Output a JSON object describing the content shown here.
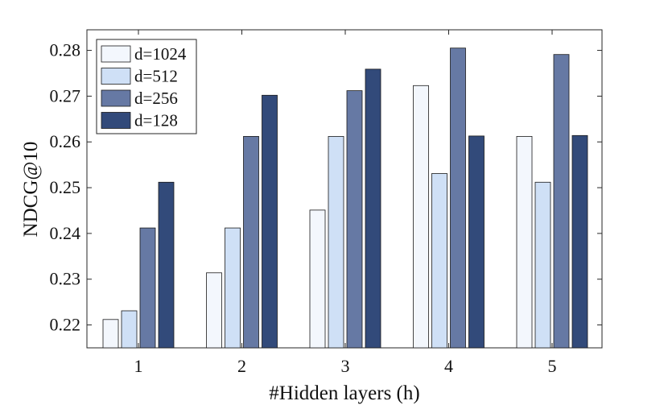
{
  "chart_data": {
    "type": "bar",
    "title": "",
    "xlabel": "#Hidden layers (h)",
    "ylabel": "NDCG@10",
    "categories": [
      "1",
      "2",
      "3",
      "4",
      "5"
    ],
    "ylim": [
      0.215,
      0.2845
    ],
    "yticks": [
      "0.22",
      "0.23",
      "0.24",
      "0.25",
      "0.26",
      "0.27",
      "0.28"
    ],
    "legend_position": "top-left",
    "grid": false,
    "series": [
      {
        "name": "d=1024",
        "color": "#f3f7fd",
        "values": [
          0.2212,
          0.2314,
          0.2451,
          0.2723,
          0.2612
        ]
      },
      {
        "name": "d=512",
        "color": "#cfe0f6",
        "values": [
          0.2231,
          0.2412,
          0.2612,
          0.2531,
          0.2512
        ]
      },
      {
        "name": "d=256",
        "color": "#6679a4",
        "values": [
          0.2412,
          0.2612,
          0.2712,
          0.2805,
          0.2791
        ]
      },
      {
        "name": "d=128",
        "color": "#324a7a",
        "values": [
          0.2512,
          0.2702,
          0.2759,
          0.2613,
          0.2614
        ]
      }
    ]
  }
}
